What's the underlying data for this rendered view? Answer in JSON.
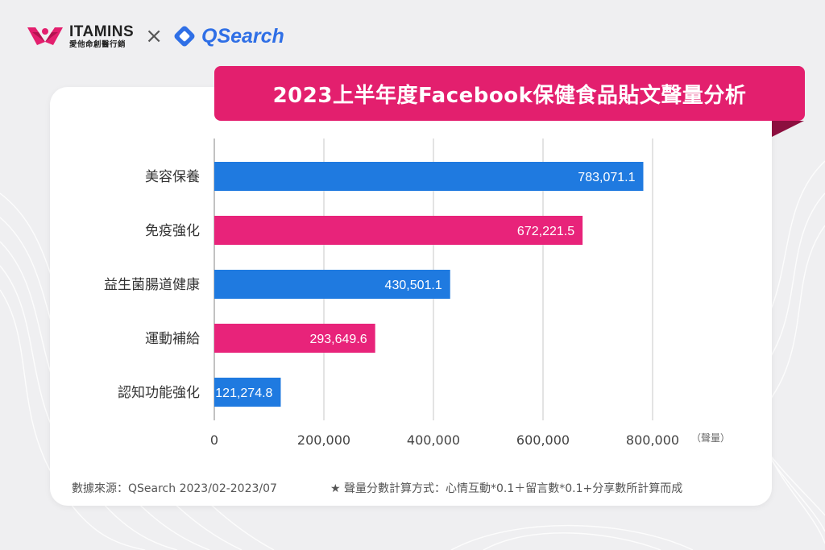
{
  "header": {
    "brand_name": "ITAMINS",
    "brand_sub": "愛他命創醫行銷",
    "times_glyph": "×",
    "partner_name": "QSearch"
  },
  "chart_data": {
    "type": "bar",
    "orientation": "horizontal",
    "title": "2023上半年度Facebook保健食品貼文聲量分析",
    "categories": [
      "美容保養",
      "免疫強化",
      "益生菌腸道健康",
      "運動補給",
      "認知功能強化"
    ],
    "values": [
      783071.1,
      672221.5,
      430501.1,
      293649.6,
      121274.8
    ],
    "value_labels": [
      "783,071.1",
      "672,221.5",
      "430,501.1",
      "293,649.6",
      "121,274.8"
    ],
    "bar_colors": [
      "#1f7ae0",
      "#e8237a",
      "#1f7ae0",
      "#e8237a",
      "#1f7ae0"
    ],
    "x_ticks": [
      0,
      200000,
      400000,
      600000,
      800000
    ],
    "x_tick_labels": [
      "0",
      "200,000",
      "400,000",
      "600,000",
      "800,000"
    ],
    "xlabel": "（聲量）",
    "xlim": [
      0,
      800000
    ],
    "grid": true
  },
  "footer": {
    "source": "數據來源：QSearch 2023/02-2023/07",
    "note": "★ 聲量分數計算方式：心情互動*0.1＋留言數*0.1+分享數所計算而成"
  }
}
